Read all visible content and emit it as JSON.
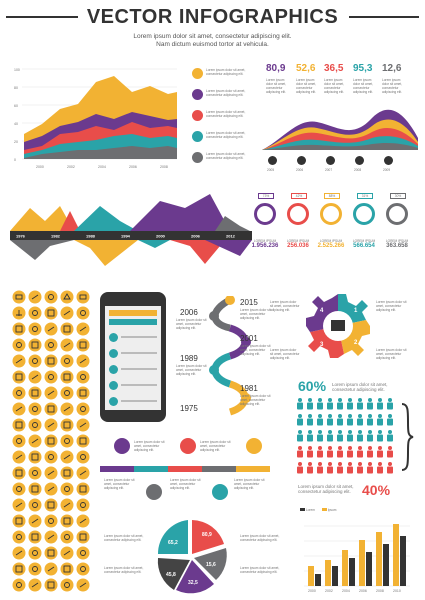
{
  "header": {
    "title": "VECTOR INFOGRAPHICS",
    "subtitle1": "Lorem ipsum dolor sit amet, consectetur adipiscing elit.",
    "subtitle2": "Nam dictum euismod tortor at vehicula."
  },
  "colors": {
    "yellow": "#F2B233",
    "orange": "#F47A2A",
    "red": "#E84D4A",
    "purple": "#6B3A8E",
    "teal": "#2AA3A8",
    "gray": "#6D6E71",
    "dark": "#333333"
  },
  "chart_area": {
    "y_ticks": [
      "100",
      "80",
      "60",
      "40",
      "20",
      "0"
    ],
    "x_ticks": [
      "2000",
      "2002",
      "2004",
      "2006",
      "2008"
    ]
  },
  "legend_items": [
    {
      "icon": "cart-icon",
      "text": "Lorem ipsum dolor sit amet, consectetur adipiscing elit."
    },
    {
      "icon": "box-icon",
      "text": "Lorem ipsum dolor sit amet, consectetur adipiscing elit."
    },
    {
      "icon": "cup-icon",
      "text": "Lorem ipsum dolor sit amet, consectetur adipiscing elit."
    },
    {
      "icon": "gift-icon",
      "text": "Lorem ipsum dolor sit amet, consectetur adipiscing elit."
    },
    {
      "icon": "chat-icon",
      "text": "Lorem ipsum dolor sit amet, consectetur adipiscing elit."
    }
  ],
  "wave_values": [
    "80,9",
    "52,6",
    "36,5",
    "95,3",
    "12,6"
  ],
  "wave_years": [
    "2005",
    "2006",
    "2007",
    "2008",
    "2009"
  ],
  "timeline_years": [
    "1976",
    "1982",
    "1988",
    "1994",
    "2000",
    "2006",
    "2012"
  ],
  "timeline_text": "Lorem ipsum dolor sit amet, consectetur adipiscing elit.",
  "pins": [
    {
      "pct": "73%",
      "value": "1.956.236",
      "color": "#6B3A8E",
      "label": "LOREM IPSUM"
    },
    {
      "pct": "42%",
      "value": "256.036",
      "color": "#E84D4A",
      "label": "LOREM IPSUM"
    },
    {
      "pct": "88%",
      "value": "2.525.266",
      "color": "#F2B233",
      "label": "LOREM IPSUM"
    },
    {
      "pct": "31%",
      "value": "566.654",
      "color": "#2AA3A8",
      "label": "LOREM IPSUM"
    },
    {
      "pct": "30%",
      "value": "363.658",
      "color": "#6D6E71",
      "label": "LOREM IPSUM"
    }
  ],
  "snake_years": [
    "2015",
    "2006",
    "2001",
    "1989",
    "1981",
    "1975"
  ],
  "snake_text": "Lorem ipsum dolor sit amet, consectetur adipiscing elit.",
  "gear_steps": [
    "1",
    "2",
    "3",
    "4"
  ],
  "gear_text": "Lorem ipsum dolor sit amet, consectetur adipiscing elit.",
  "people": {
    "pct_top": "60%",
    "pct_bottom": "40%",
    "text_top1": "Lorem ipsum dolor sit amet,",
    "text_top2": "consectetur adipiscing elit.",
    "text_bottom1": "Lorem ipsum dolor sit amet,",
    "text_bottom2": "consectetur adipiscing elit."
  },
  "arrow_steps_text": "Lorem ipsum dolor sit amet, consectetur adipiscing elit.",
  "pie_values": [
    "80,9",
    "15,6",
    "65,2",
    "45,8",
    "32,5"
  ],
  "bar_chart": {
    "x_ticks": [
      "2000",
      "2002",
      "2004",
      "2006",
      "2008",
      "2010"
    ],
    "legend": [
      "Lorem",
      "Ipsum"
    ]
  }
}
